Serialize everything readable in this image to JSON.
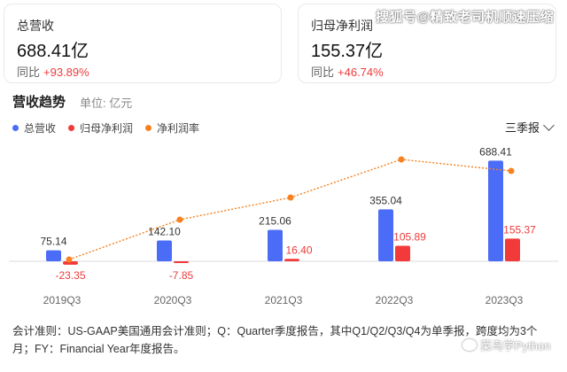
{
  "cards": {
    "revenue": {
      "label": "总营收",
      "value": "688.41亿",
      "yoy_label": "同比",
      "yoy_value": "+93.89%"
    },
    "net_profit": {
      "label": "归母净利润",
      "value": "155.37亿",
      "yoy_label": "同比",
      "yoy_value": "+46.74%"
    }
  },
  "watermark": "搜狐号@精致老司机顺速压缩",
  "section": {
    "title": "营收趋势",
    "unit": "单位: 亿元"
  },
  "legend": [
    {
      "label": "总营收",
      "color": "#4a6cf7"
    },
    {
      "label": "归母净利润",
      "color": "#f23a3a"
    },
    {
      "label": "净利润率",
      "color": "#f7811e"
    }
  ],
  "period_select": {
    "value": "三季报"
  },
  "chart_data": {
    "type": "bar",
    "categories": [
      "2019Q3",
      "2020Q3",
      "2021Q3",
      "2022Q3",
      "2023Q3"
    ],
    "series": [
      {
        "name": "总营收",
        "values": [
          75.14,
          142.1,
          215.06,
          355.04,
          688.41
        ],
        "color": "#4a6cf7"
      },
      {
        "name": "归母净利润",
        "values": [
          -23.35,
          -7.85,
          16.4,
          105.89,
          155.37
        ],
        "color": "#f23a3a"
      },
      {
        "name": "净利润率",
        "type": "line",
        "values": [
          -31.07,
          -5.52,
          7.63,
          29.82,
          22.57
        ],
        "color": "#f7811e"
      }
    ],
    "value_labels": {
      "revenue": [
        "75.14",
        "142.10",
        "215.06",
        "355.04",
        "688.41"
      ],
      "profit": [
        "-23.35",
        "-7.85",
        "16.40",
        "105.89",
        "155.37"
      ]
    }
  },
  "footnote": "会计准则：US-GAAP美国通用会计准则；Q：Quarter季度报告，其中Q1/Q2/Q3/Q4为单季报，跨度均为3个月；FY：Financial Year年度报告。",
  "wechat_watermark": "菜鸟学Python"
}
